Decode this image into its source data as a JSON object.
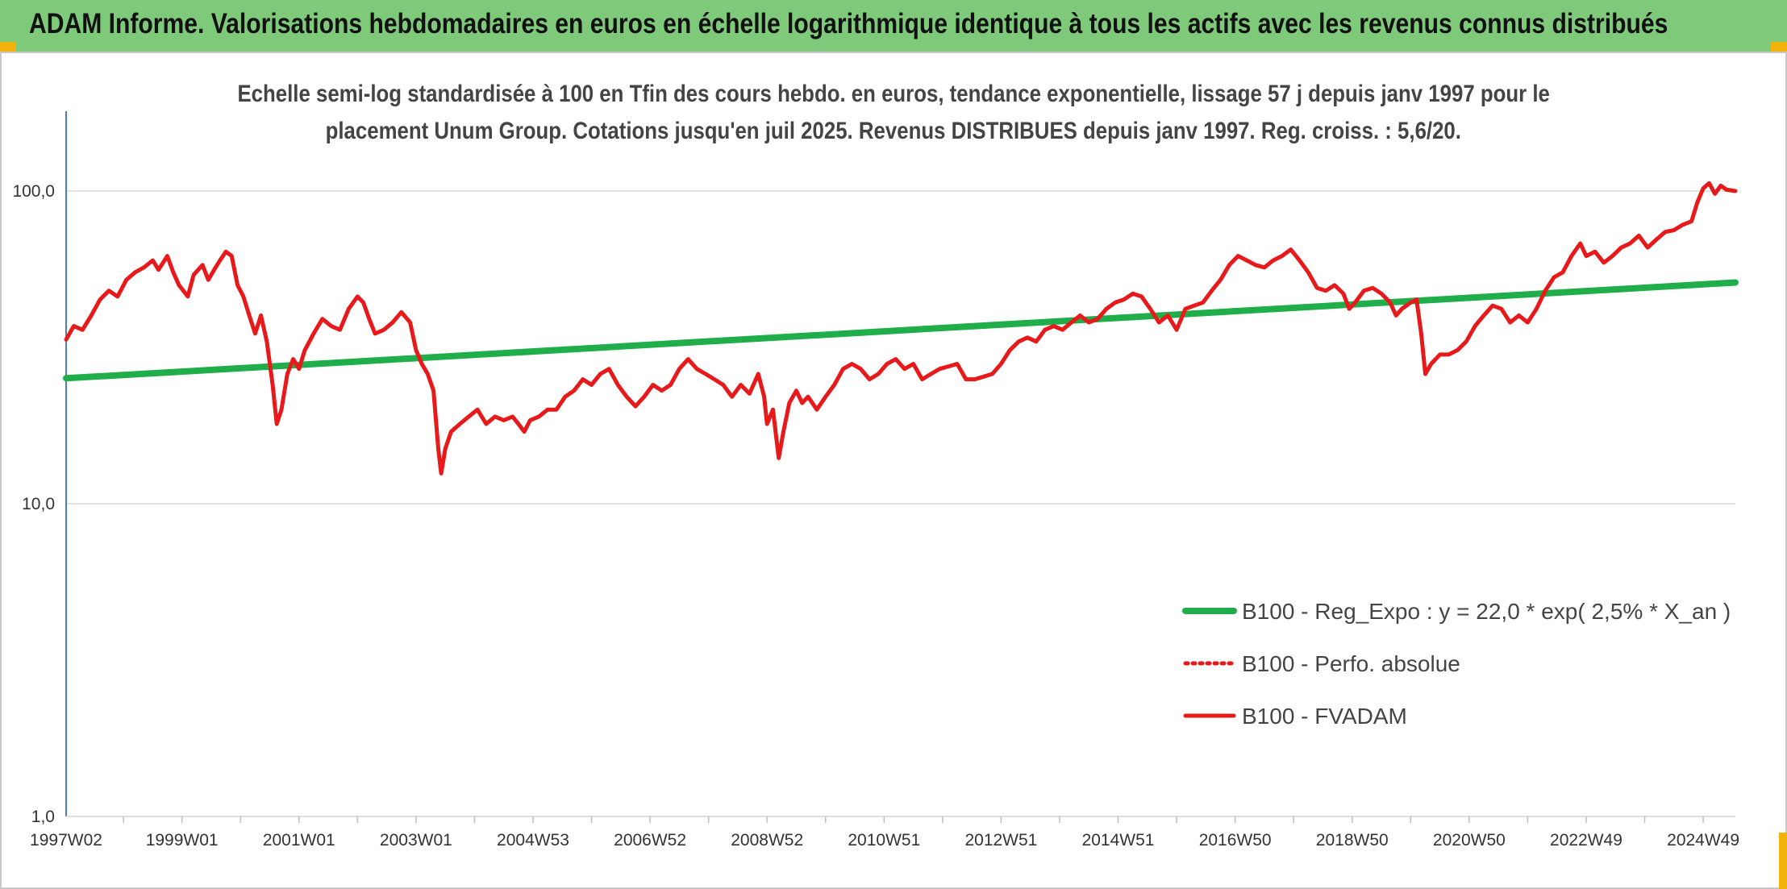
{
  "banner": {
    "title": "ADAM Informe. Valorisations hebdomadaires en euros en échelle logarithmique identique à tous les actifs avec les revenus connus distribués",
    "background": "#7fc97a"
  },
  "chart_data": {
    "type": "line",
    "title_line1": "Echelle semi-log standardisée à 100 en Tfin des cours hebdo. en euros, tendance exponentielle, lissage 57 j depuis janv 1997 pour le",
    "title_line2": "placement Unum Group. Cotations jusqu'en juil 2025. Revenus DISTRIBUES depuis janv 1997. Reg. croiss. : 5,6/20.",
    "y_scale": "log",
    "ylim": [
      1,
      180
    ],
    "xlim": [
      1997.02,
      2025.55
    ],
    "y_ticks": [
      {
        "value": 1,
        "label": "1,0"
      },
      {
        "value": 10,
        "label": "10,0"
      },
      {
        "value": 100,
        "label": "100,0"
      }
    ],
    "x_tick_labels": [
      {
        "x": 1997.02,
        "label": "1997W02"
      },
      {
        "x": 1999.0,
        "label": "1999W01"
      },
      {
        "x": 2001.0,
        "label": "2001W01"
      },
      {
        "x": 2003.0,
        "label": "2003W01"
      },
      {
        "x": 2005.0,
        "label": "2004W53"
      },
      {
        "x": 2007.0,
        "label": "2006W52"
      },
      {
        "x": 2009.0,
        "label": "2008W52"
      },
      {
        "x": 2011.0,
        "label": "2010W51"
      },
      {
        "x": 2013.0,
        "label": "2012W51"
      },
      {
        "x": 2015.0,
        "label": "2014W51"
      },
      {
        "x": 2017.0,
        "label": "2016W50"
      },
      {
        "x": 2019.0,
        "label": "2018W50"
      },
      {
        "x": 2021.0,
        "label": "2020W50"
      },
      {
        "x": 2023.0,
        "label": "2022W49"
      },
      {
        "x": 2025.0,
        "label": "2024W49"
      }
    ],
    "grid": "horizontal",
    "legend_position": "bottom-right",
    "series": [
      {
        "name": "B100 - Reg_Expo : y = 22,0 * exp( 2,5% *  X_an )",
        "color": "#1fae4a",
        "style": "solid",
        "points": [
          [
            1997.02,
            25.2
          ],
          [
            2025.55,
            51.0
          ]
        ]
      },
      {
        "name": "B100 - Perfo. absolue",
        "color": "#e8191a",
        "style": "dotted",
        "points": []
      },
      {
        "name": "B100 - FVADAM",
        "color": "#e8191a",
        "style": "solid",
        "points": [
          [
            1997.02,
            33.5
          ],
          [
            1997.15,
            37.0
          ],
          [
            1997.3,
            36.0
          ],
          [
            1997.45,
            40.0
          ],
          [
            1997.6,
            45.0
          ],
          [
            1997.75,
            48.0
          ],
          [
            1997.9,
            46.0
          ],
          [
            1998.05,
            52.0
          ],
          [
            1998.2,
            55.0
          ],
          [
            1998.35,
            57.0
          ],
          [
            1998.5,
            60.0
          ],
          [
            1998.6,
            56.0
          ],
          [
            1998.75,
            62.0
          ],
          [
            1998.85,
            55.0
          ],
          [
            1998.95,
            50.0
          ],
          [
            1999.1,
            46.0
          ],
          [
            1999.2,
            54.0
          ],
          [
            1999.35,
            58.0
          ],
          [
            1999.45,
            52.0
          ],
          [
            1999.55,
            56.0
          ],
          [
            1999.65,
            60.0
          ],
          [
            1999.75,
            64.0
          ],
          [
            1999.85,
            62.0
          ],
          [
            1999.95,
            50.0
          ],
          [
            2000.05,
            46.0
          ],
          [
            2000.15,
            40.0
          ],
          [
            2000.25,
            35.0
          ],
          [
            2000.35,
            40.0
          ],
          [
            2000.45,
            33.0
          ],
          [
            2000.55,
            24.0
          ],
          [
            2000.62,
            18.0
          ],
          [
            2000.7,
            20.0
          ],
          [
            2000.8,
            26.0
          ],
          [
            2000.9,
            29.0
          ],
          [
            2001.0,
            27.0
          ],
          [
            2001.1,
            31.0
          ],
          [
            2001.25,
            35.0
          ],
          [
            2001.4,
            39.0
          ],
          [
            2001.55,
            37.0
          ],
          [
            2001.7,
            36.0
          ],
          [
            2001.85,
            42.0
          ],
          [
            2002.0,
            46.0
          ],
          [
            2002.1,
            44.0
          ],
          [
            2002.2,
            39.0
          ],
          [
            2002.3,
            35.0
          ],
          [
            2002.45,
            36.0
          ],
          [
            2002.6,
            38.0
          ],
          [
            2002.75,
            41.0
          ],
          [
            2002.9,
            38.0
          ],
          [
            2003.0,
            31.0
          ],
          [
            2003.1,
            28.0
          ],
          [
            2003.2,
            26.0
          ],
          [
            2003.3,
            23.0
          ],
          [
            2003.38,
            15.0
          ],
          [
            2003.43,
            12.5
          ],
          [
            2003.5,
            15.0
          ],
          [
            2003.6,
            17.0
          ],
          [
            2003.75,
            18.0
          ],
          [
            2003.9,
            19.0
          ],
          [
            2004.05,
            20.0
          ],
          [
            2004.2,
            18.0
          ],
          [
            2004.35,
            19.0
          ],
          [
            2004.5,
            18.5
          ],
          [
            2004.65,
            19.0
          ],
          [
            2004.75,
            18.0
          ],
          [
            2004.85,
            17.0
          ],
          [
            2004.95,
            18.5
          ],
          [
            2005.1,
            19.0
          ],
          [
            2005.25,
            20.0
          ],
          [
            2005.4,
            20.0
          ],
          [
            2005.55,
            22.0
          ],
          [
            2005.7,
            23.0
          ],
          [
            2005.85,
            25.0
          ],
          [
            2006.0,
            24.0
          ],
          [
            2006.15,
            26.0
          ],
          [
            2006.3,
            27.0
          ],
          [
            2006.45,
            24.0
          ],
          [
            2006.6,
            22.0
          ],
          [
            2006.75,
            20.5
          ],
          [
            2006.9,
            22.0
          ],
          [
            2007.05,
            24.0
          ],
          [
            2007.2,
            23.0
          ],
          [
            2007.35,
            24.0
          ],
          [
            2007.5,
            27.0
          ],
          [
            2007.65,
            29.0
          ],
          [
            2007.8,
            27.0
          ],
          [
            2007.95,
            26.0
          ],
          [
            2008.1,
            25.0
          ],
          [
            2008.25,
            24.0
          ],
          [
            2008.4,
            22.0
          ],
          [
            2008.55,
            24.0
          ],
          [
            2008.7,
            22.5
          ],
          [
            2008.85,
            26.0
          ],
          [
            2008.95,
            22.0
          ],
          [
            2009.0,
            18.0
          ],
          [
            2009.1,
            20.0
          ],
          [
            2009.2,
            14.0
          ],
          [
            2009.28,
            17.0
          ],
          [
            2009.38,
            21.0
          ],
          [
            2009.5,
            23.0
          ],
          [
            2009.6,
            21.0
          ],
          [
            2009.7,
            22.0
          ],
          [
            2009.85,
            20.0
          ],
          [
            2010.0,
            22.0
          ],
          [
            2010.15,
            24.0
          ],
          [
            2010.3,
            27.0
          ],
          [
            2010.45,
            28.0
          ],
          [
            2010.6,
            27.0
          ],
          [
            2010.75,
            25.0
          ],
          [
            2010.9,
            26.0
          ],
          [
            2011.05,
            28.0
          ],
          [
            2011.2,
            29.0
          ],
          [
            2011.35,
            27.0
          ],
          [
            2011.5,
            28.0
          ],
          [
            2011.65,
            25.0
          ],
          [
            2011.8,
            26.0
          ],
          [
            2011.95,
            27.0
          ],
          [
            2012.1,
            27.5
          ],
          [
            2012.25,
            28.0
          ],
          [
            2012.4,
            25.0
          ],
          [
            2012.55,
            25.0
          ],
          [
            2012.7,
            25.5
          ],
          [
            2012.85,
            26.0
          ],
          [
            2013.0,
            28.0
          ],
          [
            2013.15,
            31.0
          ],
          [
            2013.3,
            33.0
          ],
          [
            2013.45,
            34.0
          ],
          [
            2013.6,
            33.0
          ],
          [
            2013.75,
            36.0
          ],
          [
            2013.9,
            37.0
          ],
          [
            2014.05,
            36.0
          ],
          [
            2014.2,
            38.0
          ],
          [
            2014.35,
            40.0
          ],
          [
            2014.5,
            38.0
          ],
          [
            2014.65,
            39.0
          ],
          [
            2014.8,
            42.0
          ],
          [
            2014.95,
            44.0
          ],
          [
            2015.1,
            45.0
          ],
          [
            2015.25,
            47.0
          ],
          [
            2015.4,
            46.0
          ],
          [
            2015.55,
            42.0
          ],
          [
            2015.7,
            38.0
          ],
          [
            2015.85,
            40.0
          ],
          [
            2016.0,
            36.0
          ],
          [
            2016.15,
            42.0
          ],
          [
            2016.3,
            43.0
          ],
          [
            2016.45,
            44.0
          ],
          [
            2016.6,
            48.0
          ],
          [
            2016.75,
            52.0
          ],
          [
            2016.9,
            58.0
          ],
          [
            2017.05,
            62.0
          ],
          [
            2017.2,
            60.0
          ],
          [
            2017.35,
            58.0
          ],
          [
            2017.5,
            57.0
          ],
          [
            2017.65,
            60.0
          ],
          [
            2017.8,
            62.0
          ],
          [
            2017.95,
            65.0
          ],
          [
            2018.1,
            60.0
          ],
          [
            2018.25,
            55.0
          ],
          [
            2018.4,
            49.0
          ],
          [
            2018.55,
            48.0
          ],
          [
            2018.7,
            50.0
          ],
          [
            2018.85,
            47.0
          ],
          [
            2018.95,
            42.0
          ],
          [
            2019.05,
            44.0
          ],
          [
            2019.2,
            48.0
          ],
          [
            2019.35,
            49.0
          ],
          [
            2019.5,
            47.0
          ],
          [
            2019.65,
            44.0
          ],
          [
            2019.75,
            40.0
          ],
          [
            2019.85,
            42.0
          ],
          [
            2020.0,
            44.0
          ],
          [
            2020.1,
            45.0
          ],
          [
            2020.18,
            35.0
          ],
          [
            2020.25,
            26.0
          ],
          [
            2020.35,
            28.0
          ],
          [
            2020.5,
            30.0
          ],
          [
            2020.65,
            30.0
          ],
          [
            2020.8,
            31.0
          ],
          [
            2020.95,
            33.0
          ],
          [
            2021.1,
            37.0
          ],
          [
            2021.25,
            40.0
          ],
          [
            2021.4,
            43.0
          ],
          [
            2021.55,
            42.0
          ],
          [
            2021.7,
            38.0
          ],
          [
            2021.85,
            40.0
          ],
          [
            2022.0,
            38.0
          ],
          [
            2022.15,
            42.0
          ],
          [
            2022.3,
            48.0
          ],
          [
            2022.45,
            53.0
          ],
          [
            2022.6,
            55.0
          ],
          [
            2022.75,
            62.0
          ],
          [
            2022.9,
            68.0
          ],
          [
            2023.0,
            62.0
          ],
          [
            2023.15,
            64.0
          ],
          [
            2023.3,
            59.0
          ],
          [
            2023.45,
            62.0
          ],
          [
            2023.6,
            66.0
          ],
          [
            2023.75,
            68.0
          ],
          [
            2023.9,
            72.0
          ],
          [
            2024.05,
            66.0
          ],
          [
            2024.2,
            70.0
          ],
          [
            2024.35,
            74.0
          ],
          [
            2024.5,
            75.0
          ],
          [
            2024.65,
            78.0
          ],
          [
            2024.8,
            80.0
          ],
          [
            2024.9,
            92.0
          ],
          [
            2025.0,
            102.0
          ],
          [
            2025.1,
            106.0
          ],
          [
            2025.2,
            98.0
          ],
          [
            2025.3,
            104.0
          ],
          [
            2025.4,
            101.0
          ],
          [
            2025.55,
            100.0
          ]
        ]
      }
    ]
  }
}
